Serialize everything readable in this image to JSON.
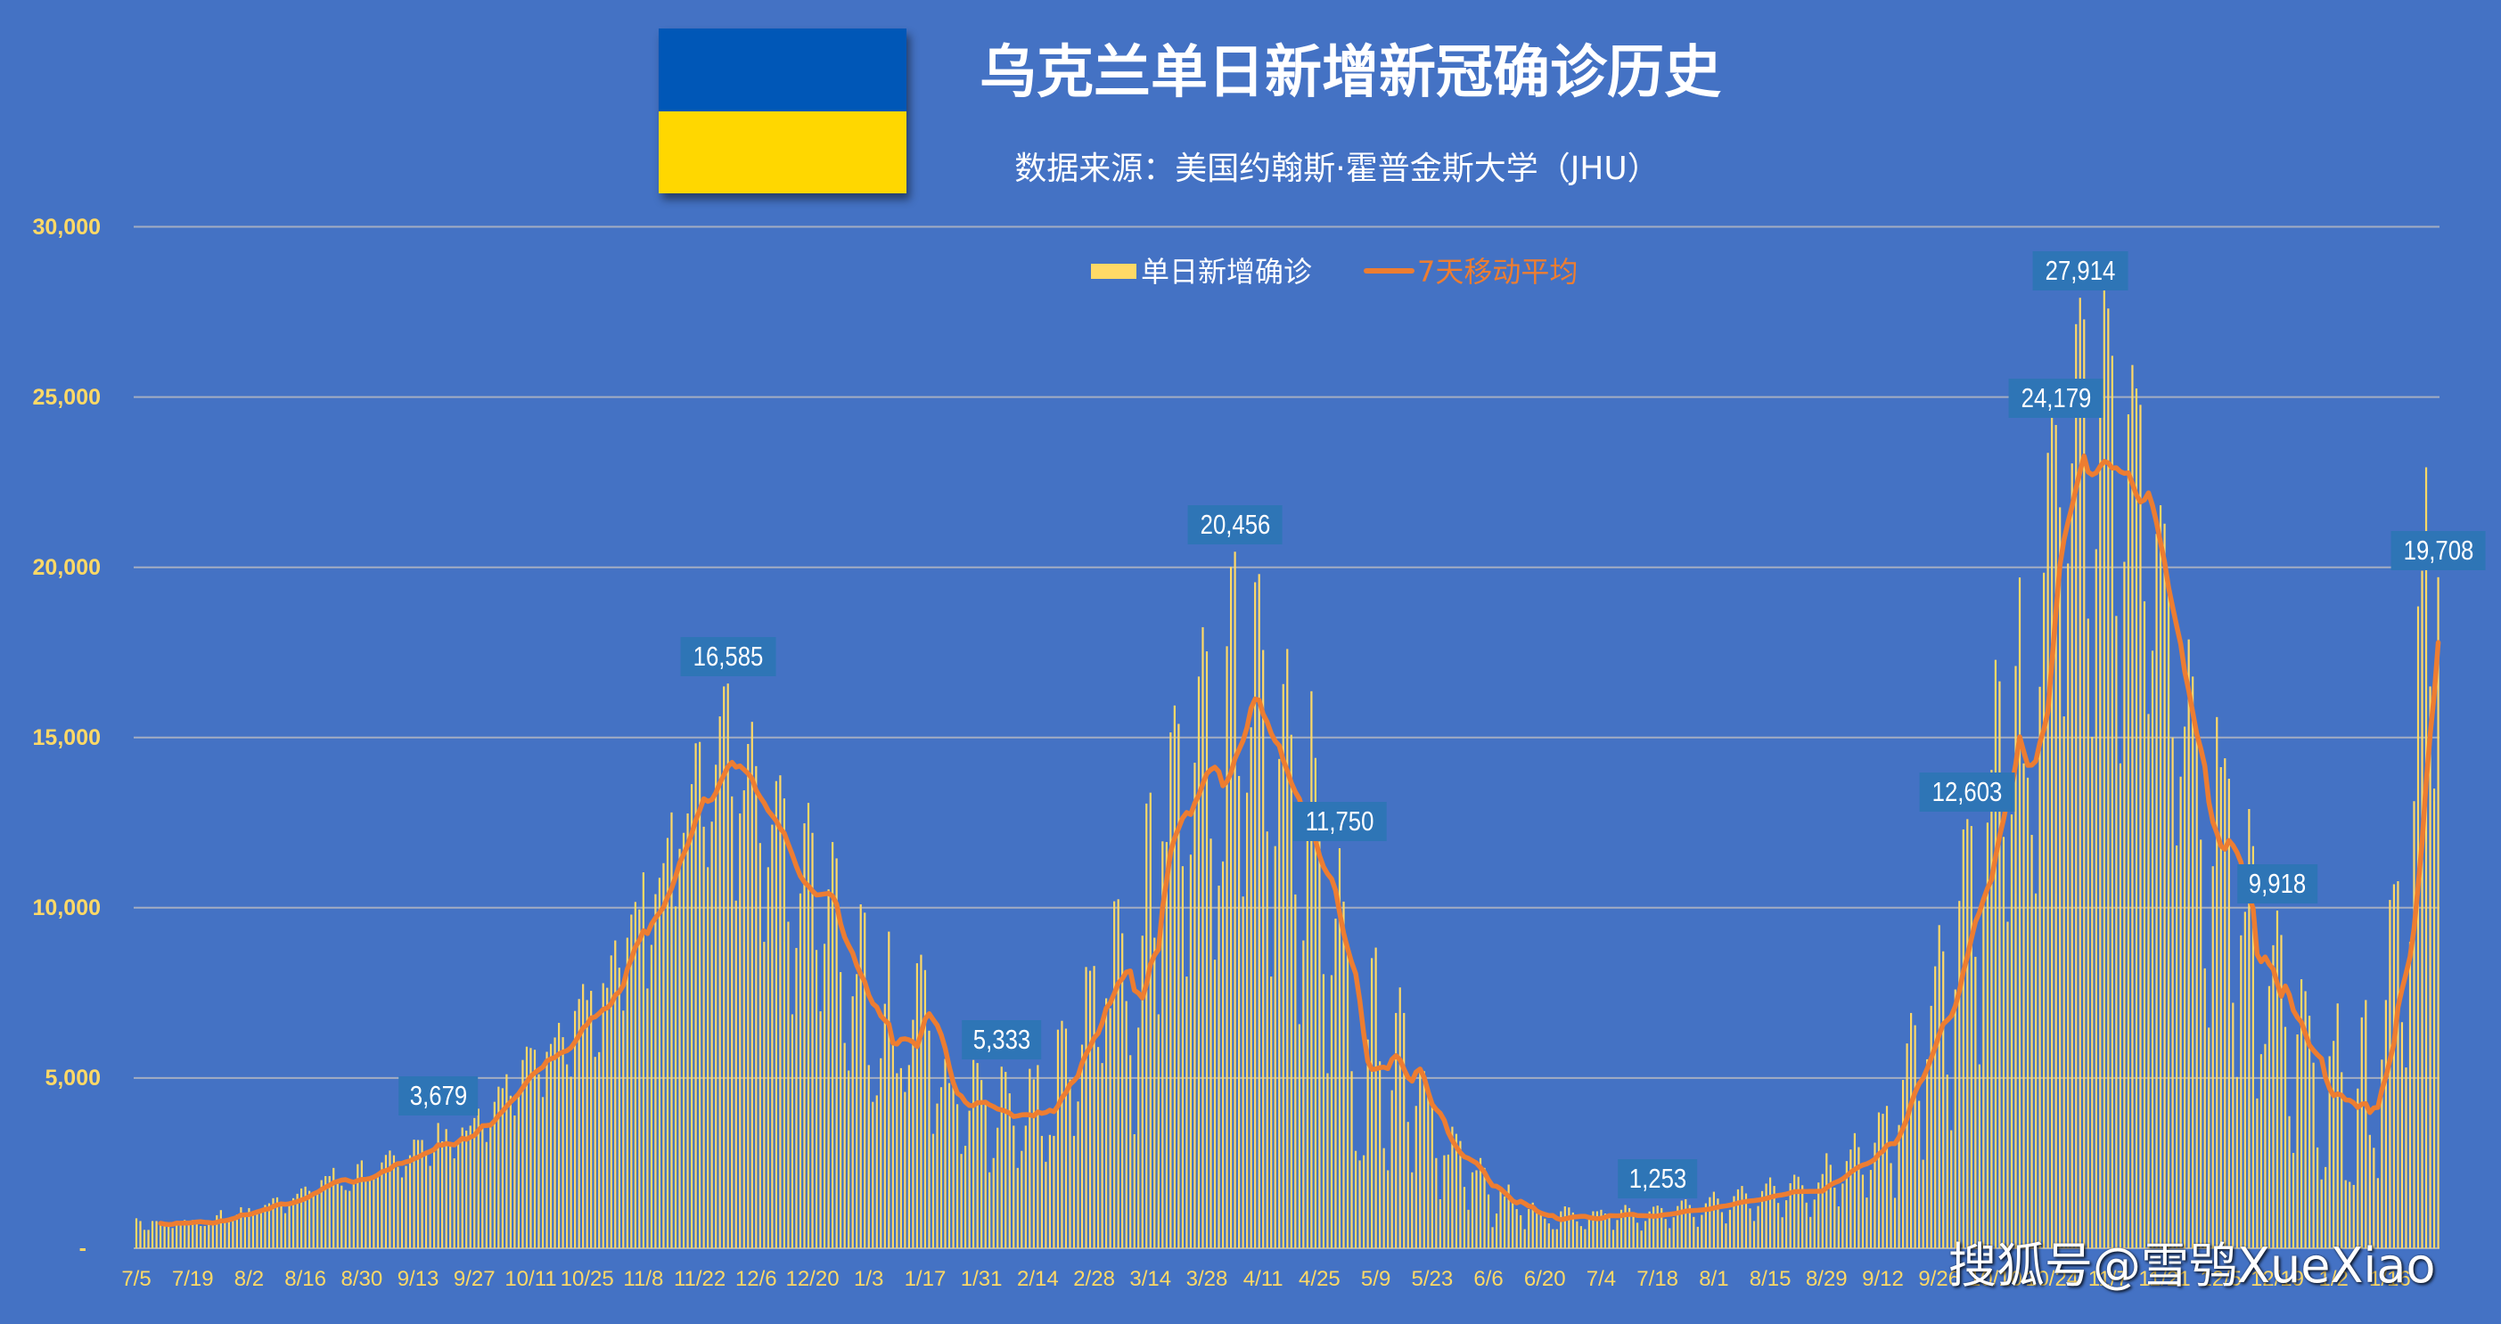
{
  "header": {
    "title": "乌克兰单日新增新冠确诊历史",
    "subtitle": "数据来源：美国约翰斯·霍普金斯大学（JHU）",
    "flag": {
      "top_color": "#0057B7",
      "bottom_color": "#FFD700"
    }
  },
  "legend": {
    "items": [
      {
        "label": "单日新增确诊",
        "type": "bar",
        "color": "#FFD966"
      },
      {
        "label": "7天移动平均",
        "type": "line",
        "color": "#ED7D31"
      }
    ]
  },
  "watermark": "搜狐号@雪鸮XueXiao",
  "colors": {
    "background": "#4472C4",
    "bar": "#FFD966",
    "line": "#ED7D31",
    "data_label_box": "#2E75B6",
    "axis_text": "#FFD966",
    "gridline": "#A3ADC2"
  },
  "chart_data": {
    "type": "bar",
    "title": "乌克兰单日新增新冠确诊历史",
    "subtitle": "数据来源：美国约翰斯·霍普金斯大学（JHU）",
    "xlabel": "",
    "ylabel": "",
    "ylim": [
      0,
      30000
    ],
    "grid": true,
    "legend_position": "top",
    "y_axis": {
      "ticks": [
        0,
        5000,
        10000,
        15000,
        20000,
        25000,
        30000
      ],
      "tick_labels": [
        "-",
        "5,000",
        "10,000",
        "15,000",
        "20,000",
        "25,000",
        "30,000"
      ]
    },
    "x_axis": {
      "tick_step_days": 14,
      "tick_labels": [
        "7/5",
        "7/19",
        "8/2",
        "8/16",
        "8/30",
        "9/13",
        "9/27",
        "10/11",
        "10/25",
        "11/8",
        "11/22",
        "12/6",
        "12/20",
        "1/3",
        "1/17",
        "1/31",
        "2/14",
        "2/28",
        "3/14",
        "3/28",
        "4/11",
        "4/25",
        "5/9",
        "5/23",
        "6/6",
        "6/20",
        "7/4",
        "7/18",
        "8/1",
        "8/15",
        "8/29",
        "9/12",
        "9/26",
        "10/10",
        "10/24",
        "11/7",
        "11/21",
        "12/5",
        "12/19",
        "1/2",
        "1/16"
      ]
    },
    "series": [
      {
        "name": "单日新增确诊",
        "type": "bar",
        "color": "#FFD966",
        "values": [
          880,
          800,
          540,
          540,
          800,
          800,
          770,
          725,
          700,
          595,
          785,
          770,
          830,
          785,
          830,
          810,
          655,
          655,
          725,
          705,
          970,
          1120,
          830,
          830,
          900,
          990,
          1205,
          990,
          1180,
          1075,
          1120,
          1160,
          1270,
          1320,
          1470,
          1495,
          1290,
          1030,
          1270,
          1470,
          1600,
          1755,
          1810,
          1685,
          1580,
          1615,
          2000,
          2120,
          2120,
          2360,
          1950,
          1840,
          1710,
          1685,
          1905,
          2470,
          2580,
          1990,
          1990,
          2030,
          2120,
          2520,
          2740,
          2870,
          2730,
          2390,
          2080,
          2420,
          2730,
          3190,
          3180,
          3180,
          2790,
          2420,
          2820,
          3679,
          3140,
          3500,
          3040,
          2640,
          3070,
          3545,
          3455,
          3600,
          3825,
          4100,
          3590,
          3120,
          3630,
          4300,
          4745,
          4700,
          5110,
          4480,
          3900,
          4530,
          5530,
          5920,
          5880,
          5830,
          5110,
          4440,
          5770,
          6000,
          6190,
          6620,
          6200,
          5400,
          5040,
          6970,
          7320,
          7760,
          7290,
          7560,
          5620,
          5760,
          7785,
          7650,
          8600,
          9040,
          8240,
          6980,
          9120,
          9800,
          10170,
          9950,
          11040,
          7630,
          8910,
          10400,
          10880,
          11310,
          12050,
          12800,
          10040,
          11730,
          12200,
          12770,
          13630,
          14830,
          14870,
          12380,
          11190,
          12530,
          14200,
          15620,
          16500,
          16585,
          13270,
          10210,
          12770,
          13450,
          14810,
          15460,
          14160,
          11900,
          9000,
          11190,
          12440,
          13720,
          13890,
          13210,
          9590,
          6870,
          8820,
          10420,
          12480,
          13080,
          12200,
          8760,
          6960,
          8940,
          10540,
          11930,
          11450,
          8110,
          6030,
          5220,
          7400,
          8050,
          10100,
          9855,
          5380,
          4300,
          4490,
          5580,
          7180,
          9300,
          5980,
          5140,
          5290,
          4590,
          5380,
          6710,
          8370,
          8620,
          8170,
          6390,
          3360,
          4250,
          4730,
          5560,
          4850,
          4900,
          4230,
          2770,
          3010,
          4040,
          5530,
          5440,
          4940,
          4300,
          2230,
          2650,
          3540,
          5333,
          5180,
          4550,
          3600,
          2360,
          2860,
          3600,
          5270,
          4960,
          5380,
          3300,
          2540,
          3330,
          3300,
          6420,
          6680,
          6450,
          4960,
          3300,
          4310,
          5980,
          8260,
          8150,
          8290,
          5910,
          5440,
          7340,
          7050,
          10190,
          10250,
          9250,
          7260,
          5670,
          3350,
          6480,
          9180,
          13060,
          13380,
          9120,
          6870,
          11950,
          11930,
          15150,
          15940,
          15400,
          11220,
          7980,
          11560,
          14260,
          16790,
          18240,
          17530,
          12030,
          8475,
          10650,
          11360,
          17680,
          20010,
          20456,
          13870,
          10330,
          13380,
          15300,
          19560,
          19800,
          17570,
          12240,
          7980,
          11810,
          14370,
          16570,
          17600,
          15080,
          10390,
          6580,
          9040,
          12030,
          16360,
          14400,
          11950,
          8050,
          5140,
          8020,
          9680,
          11750,
          10180,
          8760,
          5200,
          2860,
          2580,
          2730,
          6130,
          8520,
          8830,
          5490,
          2940,
          2290,
          4640,
          6910,
          7660,
          6910,
          3710,
          2230,
          4180,
          5250,
          5200,
          4680,
          4350,
          2650,
          1440,
          2730,
          2750,
          3570,
          3360,
          3150,
          1800,
          1130,
          2230,
          2290,
          2650,
          2360,
          1580,
          620,
          1020,
          1700,
          1520,
          1870,
          1440,
          1150,
          970,
          560,
          1150,
          1340,
          1050,
          1020,
          870,
          730,
          560,
          560,
          1085,
          1230,
          1200,
          1050,
          790,
          650,
          560,
          850,
          1085,
          1085,
          1130,
          1020,
          980,
          540,
          830,
          1130,
          1270,
          1180,
          1030,
          750,
          520,
          800,
          1080,
          1220,
          1253,
          1180,
          860,
          590,
          910,
          1240,
          1400,
          1440,
          1270,
          920,
          630,
          980,
          1320,
          1500,
          1660,
          1460,
          1060,
          730,
          1130,
          1530,
          1730,
          1830,
          1610,
          1170,
          800,
          1240,
          1680,
          1900,
          2080,
          1830,
          1330,
          910,
          1410,
          1910,
          2160,
          2100,
          1850,
          1340,
          920,
          1430,
          1930,
          2180,
          2790,
          2450,
          1780,
          1230,
          1900,
          2560,
          2900,
          3380,
          2970,
          2160,
          1490,
          2300,
          3100,
          3990,
          3950,
          4180,
          2500,
          1480,
          3620,
          4945,
          6015,
          6910,
          6550,
          4330,
          2600,
          5550,
          7120,
          8280,
          9490,
          8720,
          5100,
          3465,
          7600,
          10200,
          12300,
          12603,
          12400,
          8560,
          5400,
          10250,
          12500,
          14050,
          17280,
          16650,
          12080,
          9590,
          12740,
          17100,
          19700,
          14240,
          13820,
          12140,
          10420,
          16490,
          19840,
          23360,
          24390,
          24179,
          21760,
          15620,
          20110,
          23050,
          27140,
          27914,
          27280,
          18490,
          15020,
          20530,
          24390,
          28140,
          27600,
          26210,
          18570,
          14240,
          20160,
          24490,
          25940,
          25250,
          24770,
          19000,
          15690,
          17550,
          20980,
          21820,
          21280,
          19500,
          15000,
          11830,
          13850,
          15320,
          17880,
          16790,
          15050,
          12000,
          8220,
          6480,
          11220,
          15600,
          14130,
          14390,
          13790,
          7210,
          5030,
          9190,
          9880,
          12900,
          11810,
          4400,
          5700,
          6000,
          7700,
          8900,
          9918,
          9200,
          6500,
          3880,
          2800,
          6280,
          7900,
          7550,
          6830,
          5450,
          2960,
          2020,
          2385,
          5640,
          6090,
          7190,
          5170,
          2000,
          1950,
          1860,
          4690,
          6780,
          7290,
          3330,
          2950,
          2060,
          5540,
          7290,
          10230,
          10690,
          10780,
          6640,
          5310,
          9000,
          13130,
          18850,
          19900,
          22935,
          16500,
          13500,
          19708
        ]
      },
      {
        "name": "7天移动平均",
        "type": "line",
        "color": "#ED7D31",
        "window": 7,
        "derived_from": "单日新增确诊"
      }
    ],
    "annotations": [
      {
        "index": 75,
        "value": 3679,
        "text": "3,679"
      },
      {
        "index": 147,
        "value": 16585,
        "text": "16,585"
      },
      {
        "index": 215,
        "value": 5333,
        "text": "5,333"
      },
      {
        "index": 273,
        "value": 20456,
        "text": "20,456"
      },
      {
        "index": 299,
        "value": 11750,
        "text": "11,750"
      },
      {
        "index": 378,
        "value": 1253,
        "text": "1,253"
      },
      {
        "index": 455,
        "value": 12603,
        "text": "12,603"
      },
      {
        "index": 477,
        "value": 24179,
        "text": "24,179"
      },
      {
        "index": 483,
        "value": 27914,
        "text": "27,914"
      },
      {
        "index": 532,
        "value": 9918,
        "text": "9,918"
      },
      {
        "index": 572,
        "value": 19708,
        "text": "19,708"
      }
    ]
  }
}
